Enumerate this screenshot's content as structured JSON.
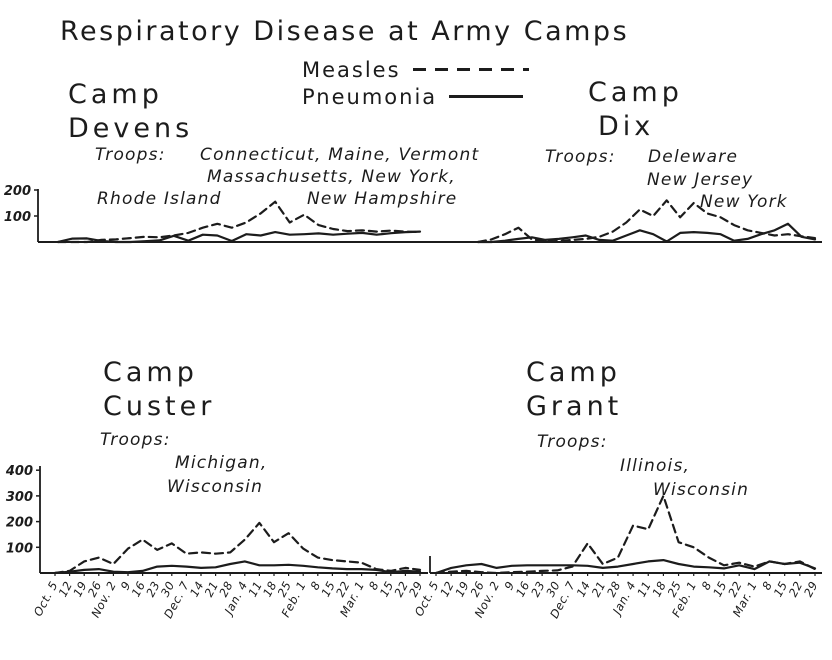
{
  "title": "Respiratory Disease at Army Camps",
  "legend": {
    "measles_label": "Measles",
    "pneumonia_label": "Pneumonia"
  },
  "colors": {
    "ink": "#1c1c1c",
    "paper": "#ffffff"
  },
  "camps": {
    "devens": {
      "name_line1": "Camp",
      "name_line2": "Devens",
      "troops": {
        "label": "Troops:",
        "line1": "Connecticut, Maine, Vermont",
        "line2": "Massachusetts, New York,",
        "line3a": "Rhode Island",
        "line3b": "New Hampshire"
      }
    },
    "dix": {
      "name_line1": "Camp",
      "name_line2": "Dix",
      "troops": {
        "label": "Troops:",
        "line1": "Deleware",
        "line2": "New Jersey",
        "line3": "New York"
      }
    },
    "custer": {
      "name_line1": "Camp",
      "name_line2": "Custer",
      "troops": {
        "label": "Troops:",
        "line1": "Michigan,",
        "line2": "Wisconsin"
      }
    },
    "grant": {
      "name_line1": "Camp",
      "name_line2": "Grant",
      "troops": {
        "label": "Troops:",
        "line1": "Illinois,",
        "line2": "Wisconsin"
      }
    }
  },
  "chart_data": [
    {
      "id": "devens",
      "type": "line",
      "camp": "Camp Devens",
      "categories": [
        "Oct. 5",
        "12",
        "19",
        "26",
        "Nov. 2",
        "9",
        "16",
        "23",
        "30",
        "Dec. 7",
        "14",
        "21",
        "28",
        "Jan. 4",
        "11",
        "18",
        "25",
        "Feb. 1",
        "8",
        "15",
        "22",
        "Mar. 1",
        "8",
        "15",
        "22",
        "29"
      ],
      "series": [
        {
          "name": "Measles",
          "style": "dashed",
          "values": [
            0,
            0,
            0,
            8,
            10,
            15,
            20,
            18,
            25,
            35,
            55,
            70,
            55,
            75,
            110,
            155,
            75,
            105,
            65,
            50,
            42,
            45,
            40,
            44,
            40,
            38
          ]
        },
        {
          "name": "Pneumonia",
          "style": "solid",
          "values": [
            0,
            13,
            14,
            4,
            0,
            0,
            3,
            6,
            24,
            5,
            28,
            25,
            4,
            30,
            25,
            38,
            28,
            30,
            33,
            28,
            32,
            35,
            28,
            34,
            38,
            40
          ]
        }
      ],
      "ylim": [
        0,
        200
      ],
      "y_ticks": [
        100,
        200
      ],
      "y_labels_visible": true,
      "x_labels_visible": false,
      "grid": false
    },
    {
      "id": "dix",
      "type": "line",
      "camp": "Camp Dix",
      "categories": [
        "Oct. 5",
        "12",
        "19",
        "26",
        "Nov. 2",
        "9",
        "16",
        "23",
        "30",
        "Dec. 7",
        "14",
        "21",
        "28",
        "Jan. 4",
        "11",
        "18",
        "25",
        "Feb. 1",
        "8",
        "15",
        "22",
        "Mar. 1",
        "8",
        "15",
        "22",
        "29"
      ],
      "series": [
        {
          "name": "Measles",
          "style": "dashed",
          "values": [
            0,
            10,
            30,
            55,
            10,
            2,
            4,
            8,
            12,
            20,
            40,
            75,
            125,
            100,
            160,
            95,
            150,
            110,
            95,
            65,
            45,
            35,
            25,
            30,
            22,
            15
          ]
        },
        {
          "name": "Pneumonia",
          "style": "solid",
          "values": [
            0,
            0,
            5,
            12,
            18,
            8,
            12,
            18,
            25,
            8,
            5,
            25,
            45,
            30,
            2,
            35,
            38,
            35,
            30,
            5,
            12,
            30,
            45,
            70,
            20,
            10
          ]
        }
      ],
      "ylim": [
        0,
        200
      ],
      "y_ticks": [],
      "y_labels_visible": false,
      "x_labels_visible": false,
      "grid": false
    },
    {
      "id": "custer",
      "type": "line",
      "camp": "Camp Custer",
      "categories": [
        "Oct. 5",
        "12",
        "19",
        "26",
        "Nov. 2",
        "9",
        "16",
        "23",
        "30",
        "Dec. 7",
        "14",
        "21",
        "28",
        "Jan. 4",
        "11",
        "18",
        "25",
        "Feb. 1",
        "8",
        "15",
        "22",
        "Mar. 1",
        "8",
        "15",
        "22",
        "29"
      ],
      "series": [
        {
          "name": "Measles",
          "style": "dashed",
          "values": [
            0,
            8,
            45,
            60,
            35,
            95,
            130,
            90,
            115,
            75,
            80,
            75,
            80,
            130,
            195,
            120,
            155,
            95,
            60,
            50,
            45,
            40,
            15,
            8,
            20,
            12
          ]
        },
        {
          "name": "Pneumonia",
          "style": "solid",
          "values": [
            0,
            5,
            12,
            15,
            5,
            3,
            8,
            25,
            28,
            25,
            20,
            22,
            35,
            45,
            30,
            30,
            32,
            28,
            22,
            18,
            15,
            15,
            12,
            3,
            8,
            5
          ]
        }
      ],
      "ylim": [
        0,
        400
      ],
      "y_ticks": [
        100,
        200,
        300,
        400
      ],
      "y_labels_visible": true,
      "x_labels_visible": true,
      "grid": false
    },
    {
      "id": "grant",
      "type": "line",
      "camp": "Camp Grant",
      "categories": [
        "Oct. 5",
        "12",
        "19",
        "26",
        "Nov. 2",
        "9",
        "16",
        "23",
        "30",
        "Dec. 7",
        "14",
        "21",
        "28",
        "Jan. 4",
        "11",
        "18",
        "25",
        "Feb. 1",
        "8",
        "15",
        "22",
        "Mar. 1",
        "8",
        "15",
        "22",
        "29"
      ],
      "series": [
        {
          "name": "Measles",
          "style": "dashed",
          "values": [
            0,
            5,
            8,
            3,
            0,
            3,
            5,
            8,
            10,
            25,
            115,
            35,
            60,
            185,
            170,
            300,
            120,
            100,
            60,
            30,
            40,
            25,
            45,
            35,
            45,
            15
          ]
        },
        {
          "name": "Pneumonia",
          "style": "solid",
          "values": [
            0,
            20,
            30,
            35,
            20,
            28,
            30,
            30,
            30,
            30,
            28,
            20,
            25,
            35,
            45,
            50,
            35,
            25,
            22,
            18,
            30,
            15,
            45,
            35,
            40,
            18
          ]
        }
      ],
      "ylim": [
        0,
        400
      ],
      "y_ticks": [],
      "y_labels_visible": false,
      "x_labels_visible": true,
      "grid": false
    }
  ]
}
